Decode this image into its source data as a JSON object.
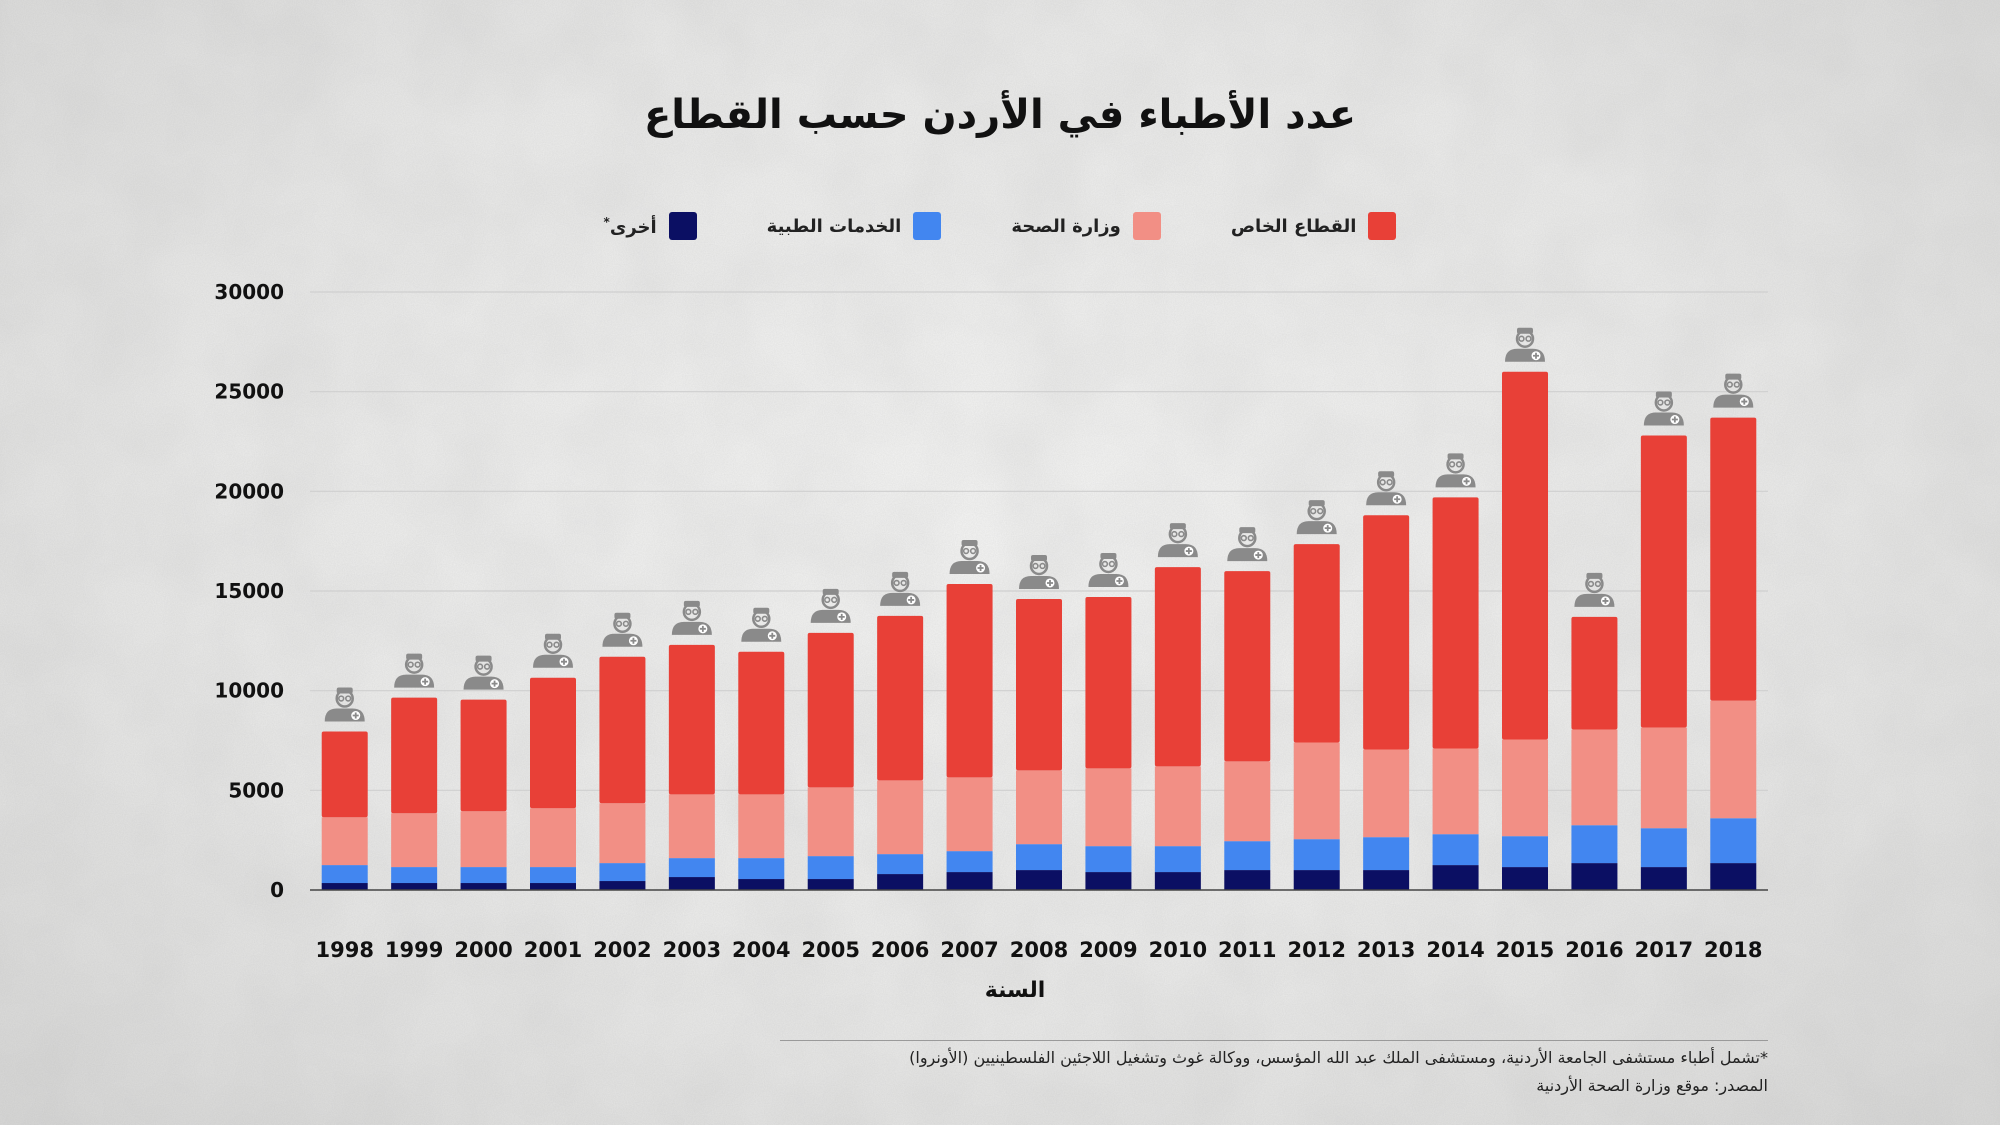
{
  "chart_data": {
    "type": "bar",
    "stacked": true,
    "title": "عدد الأطباء في الأردن حسب القطاع",
    "xlabel": "السنة",
    "ylabel": "",
    "ylim": [
      0,
      30000
    ],
    "yticks": [
      0,
      5000,
      10000,
      15000,
      20000,
      25000,
      30000
    ],
    "grid": true,
    "legend_position": "top-center",
    "categories": [
      "1998",
      "1999",
      "2000",
      "2001",
      "2002",
      "2003",
      "2004",
      "2005",
      "2006",
      "2007",
      "2008",
      "2009",
      "2010",
      "2011",
      "2012",
      "2013",
      "2014",
      "2015",
      "2016",
      "2017",
      "2018"
    ],
    "series": [
      {
        "name": "أخرى",
        "name_suffix": "*",
        "color": "#0b0f63",
        "values": [
          350,
          350,
          350,
          350,
          450,
          650,
          550,
          550,
          800,
          900,
          1000,
          900,
          900,
          1000,
          1000,
          1000,
          1250,
          1150,
          1350,
          1150,
          1350
        ]
      },
      {
        "name": "الخدمات الطبية",
        "color": "#4286f0",
        "values": [
          900,
          800,
          800,
          800,
          900,
          950,
          1050,
          1150,
          1000,
          1050,
          1300,
          1300,
          1300,
          1450,
          1550,
          1650,
          1550,
          1550,
          1900,
          1950,
          2250
        ]
      },
      {
        "name": "وزارة الصحة",
        "color": "#f28f85",
        "values": [
          2400,
          2700,
          2800,
          2950,
          3000,
          3200,
          3200,
          3450,
          3700,
          3700,
          3700,
          3900,
          4000,
          4000,
          4850,
          4400,
          4300,
          4850,
          4800,
          5050,
          5900
        ]
      },
      {
        "name": "القطاع الخاص",
        "color": "#e84037",
        "values": [
          4300,
          5800,
          5600,
          6550,
          7350,
          7500,
          7150,
          7750,
          8250,
          9700,
          8600,
          8600,
          10000,
          9550,
          9950,
          11750,
          12600,
          18450,
          5650,
          14650,
          14200
        ]
      }
    ]
  },
  "footnotes": {
    "note": "*تشمل أطباء مستشفى الجامعة الأردنية، ومستشفى الملك عبد الله المؤسس، ووكالة غوث وتشغيل اللاجئين الفلسطينيين (الأونروا)",
    "source": "المصدر: موقع وزارة الصحة الأردنية"
  },
  "icons": {
    "bar_top": "doctor-icon"
  }
}
